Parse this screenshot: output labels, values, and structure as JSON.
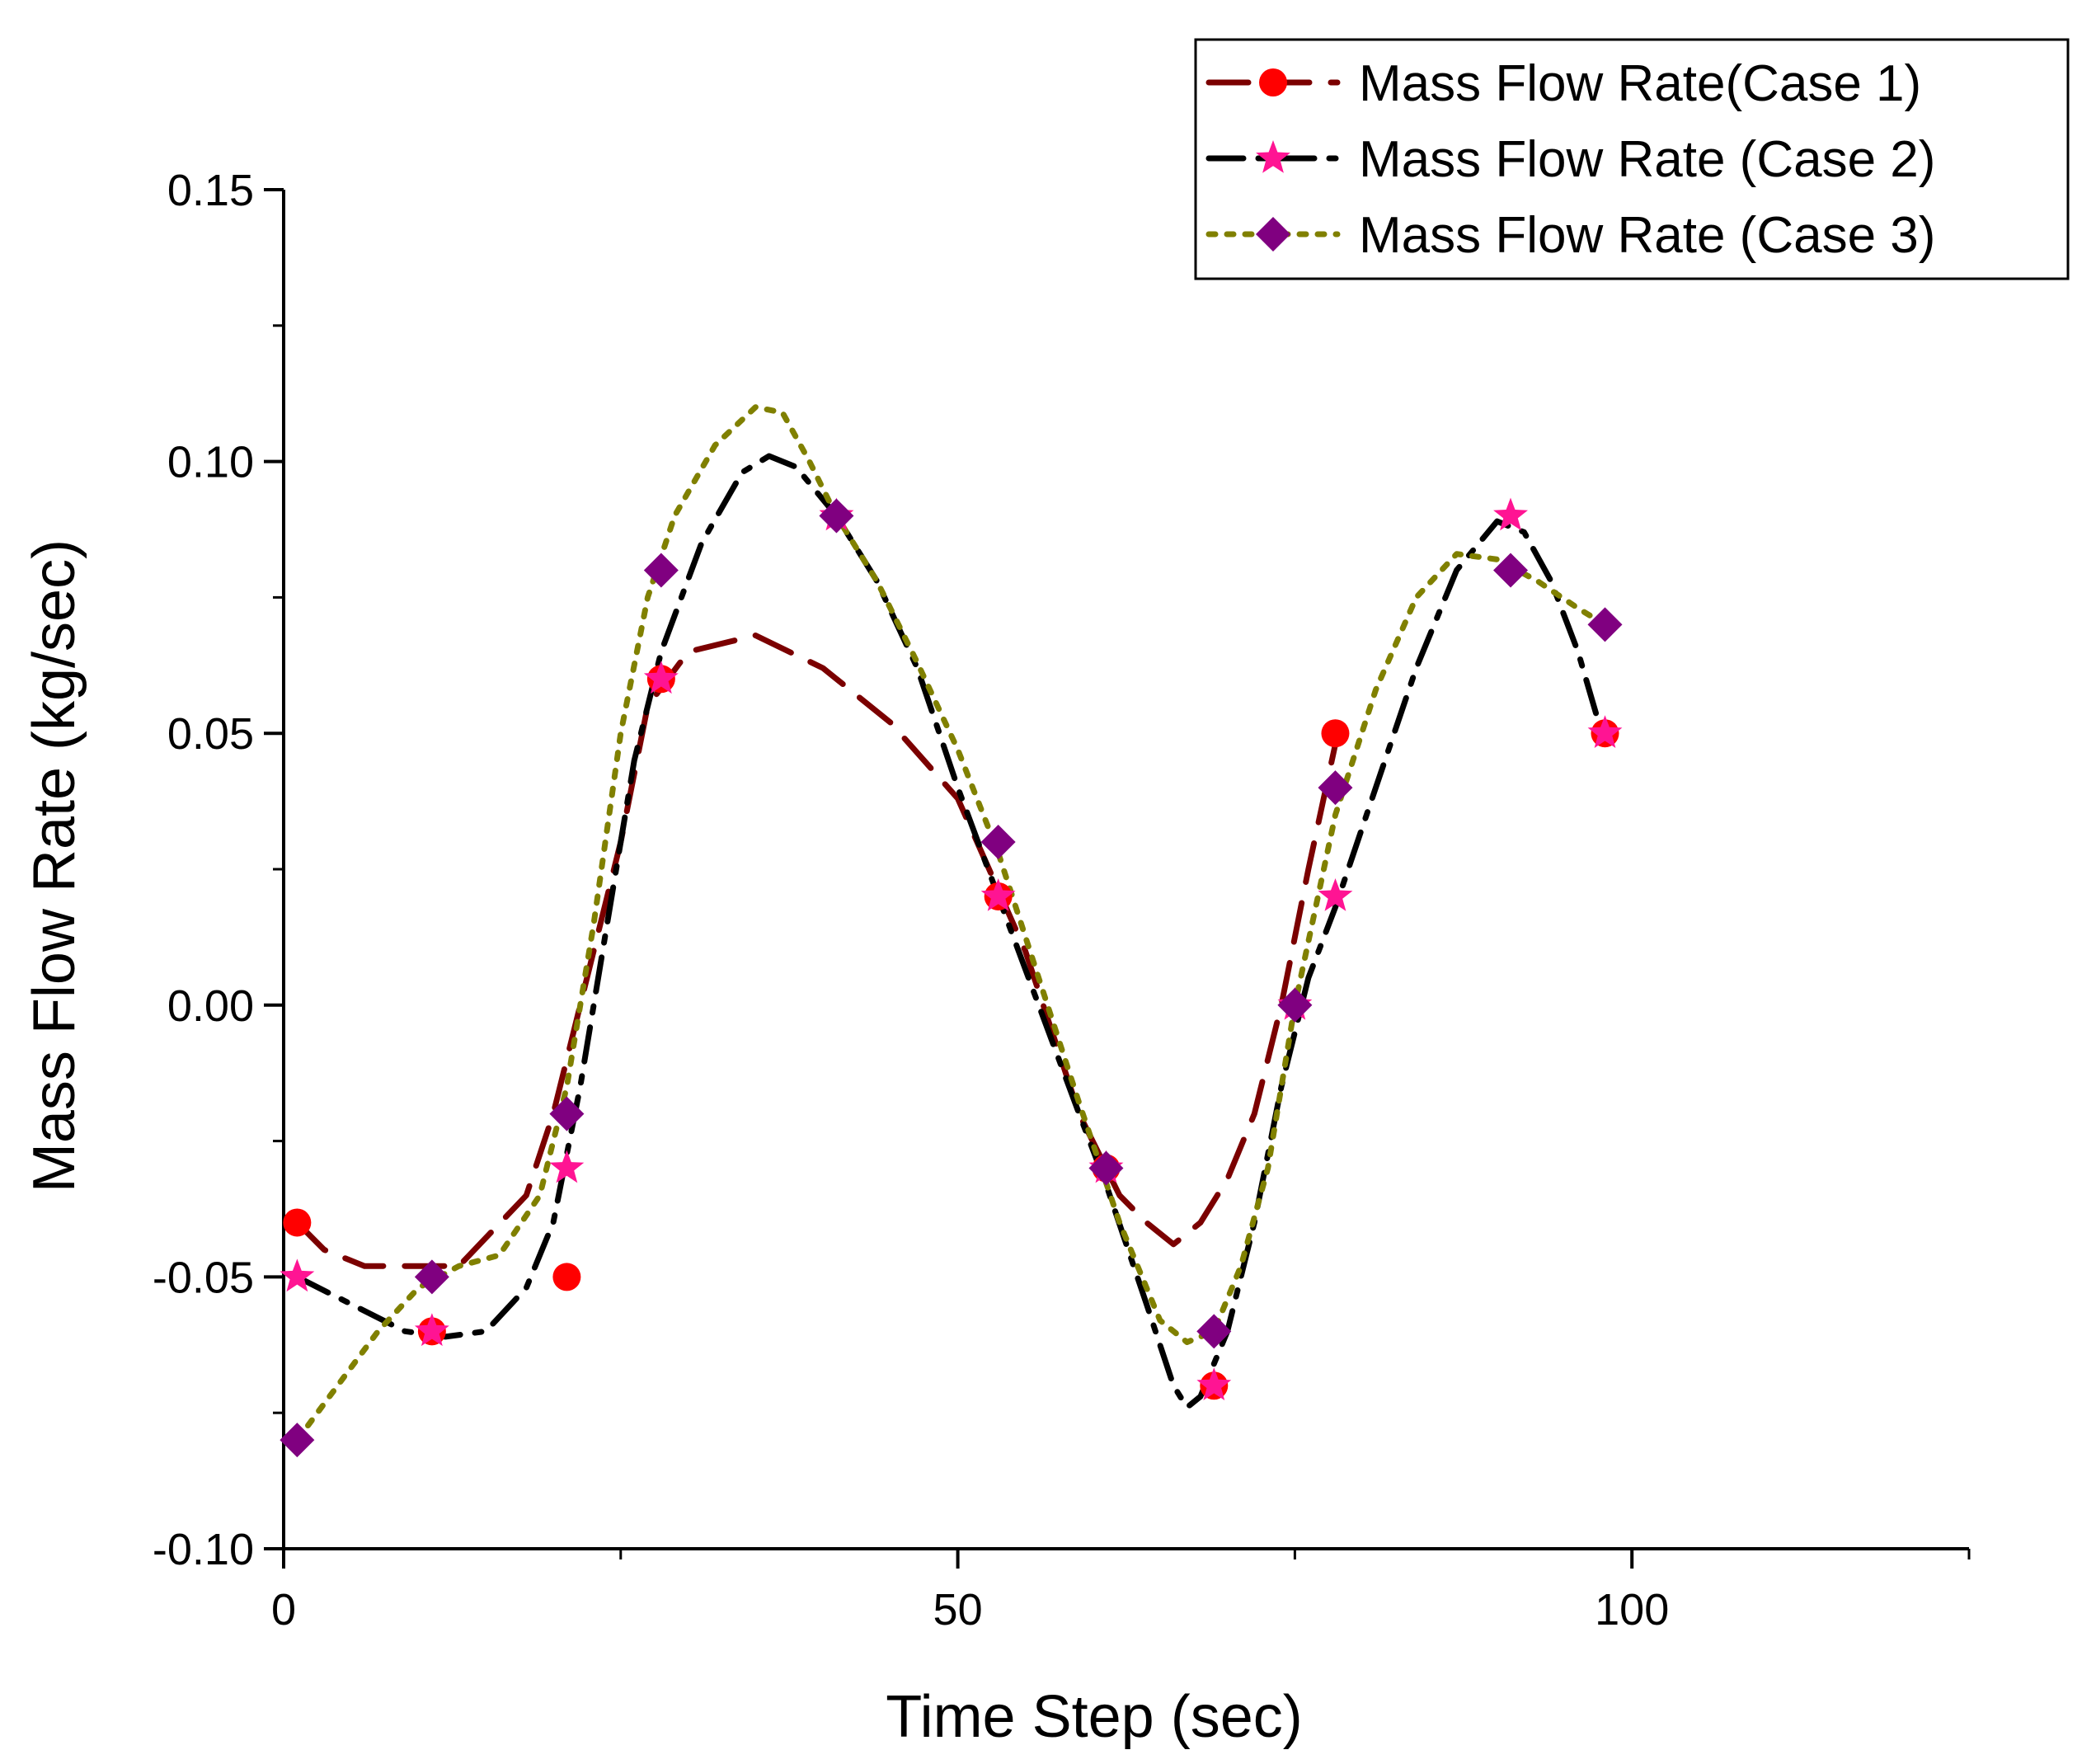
{
  "chart_data": {
    "type": "line",
    "title": "",
    "xlabel": "Time Step (sec)",
    "ylabel": "Mass Flow Rate (kg/sec)",
    "xlim": [
      0,
      125
    ],
    "ylim": [
      -0.1,
      0.15
    ],
    "grid": false,
    "legend_position": "top-right",
    "x_ticks": [
      0,
      50,
      100
    ],
    "x_tick_labels": [
      "0",
      "50",
      "100"
    ],
    "x_minor_ticks": [
      25,
      75,
      125
    ],
    "y_ticks": [
      -0.1,
      -0.05,
      0.0,
      0.05,
      0.1,
      0.15
    ],
    "y_tick_labels": [
      "-0.10",
      "-0.05",
      "0.00",
      "0.05",
      "0.10",
      "0.15"
    ],
    "y_minor_ticks": [
      -0.075,
      -0.025,
      0.025,
      0.075,
      0.125
    ],
    "series": [
      {
        "name": "Mass Flow Rate(Case 1)",
        "marker": "circle",
        "line_style": "dash",
        "line_color": "#7b0000",
        "marker_color": "#ff0000",
        "points": [
          [
            1,
            -0.04
          ],
          [
            11,
            -0.06
          ],
          [
            21,
            -0.05
          ],
          [
            28,
            0.06
          ],
          [
            53,
            0.02
          ],
          [
            61,
            -0.03
          ],
          [
            69,
            -0.07
          ],
          [
            78,
            0.05
          ],
          [
            98,
            0.05
          ]
        ],
        "curve": [
          [
            1,
            -0.04
          ],
          [
            3,
            -0.045
          ],
          [
            6,
            -0.048
          ],
          [
            10,
            -0.048
          ],
          [
            13,
            -0.048
          ],
          [
            18,
            -0.035
          ],
          [
            20,
            -0.02
          ],
          [
            22,
            0.0
          ],
          [
            25,
            0.03
          ],
          [
            27,
            0.055
          ],
          [
            30,
            0.065
          ],
          [
            35,
            0.068
          ],
          [
            40,
            0.062
          ],
          [
            45,
            0.052
          ],
          [
            50,
            0.038
          ],
          [
            55,
            0.01
          ],
          [
            59,
            -0.02
          ],
          [
            62,
            -0.035
          ],
          [
            64,
            -0.04
          ],
          [
            66,
            -0.044
          ],
          [
            68,
            -0.04
          ],
          [
            70,
            -0.032
          ],
          [
            72,
            -0.02
          ],
          [
            74,
            0.0
          ],
          [
            76,
            0.025
          ],
          [
            78,
            0.048
          ]
        ]
      },
      {
        "name": "Mass Flow Rate (Case 2)",
        "marker": "star",
        "line_style": "dashdot",
        "line_color": "#000000",
        "marker_color": "#ff1493",
        "points": [
          [
            1,
            -0.05
          ],
          [
            11,
            -0.06
          ],
          [
            21,
            -0.03
          ],
          [
            28,
            0.06
          ],
          [
            41,
            0.09
          ],
          [
            53,
            0.02
          ],
          [
            61,
            -0.03
          ],
          [
            69,
            -0.07
          ],
          [
            75,
            0.0
          ],
          [
            78,
            0.02
          ],
          [
            91,
            0.09
          ],
          [
            98,
            0.05
          ]
        ],
        "curve": [
          [
            1,
            -0.05
          ],
          [
            5,
            -0.055
          ],
          [
            9,
            -0.06
          ],
          [
            12,
            -0.061
          ],
          [
            15,
            -0.06
          ],
          [
            18,
            -0.052
          ],
          [
            20,
            -0.04
          ],
          [
            22,
            -0.015
          ],
          [
            24,
            0.015
          ],
          [
            26,
            0.045
          ],
          [
            28,
            0.065
          ],
          [
            31,
            0.085
          ],
          [
            34,
            0.098
          ],
          [
            36,
            0.101
          ],
          [
            38,
            0.099
          ],
          [
            41,
            0.09
          ],
          [
            44,
            0.078
          ],
          [
            47,
            0.062
          ],
          [
            50,
            0.04
          ],
          [
            53,
            0.02
          ],
          [
            56,
            0.0
          ],
          [
            59,
            -0.02
          ],
          [
            61,
            -0.033
          ],
          [
            64,
            -0.055
          ],
          [
            66,
            -0.07
          ],
          [
            67,
            -0.074
          ],
          [
            68,
            -0.072
          ],
          [
            70,
            -0.06
          ],
          [
            72,
            -0.04
          ],
          [
            74,
            -0.015
          ],
          [
            76,
            0.005
          ],
          [
            78,
            0.018
          ],
          [
            81,
            0.04
          ],
          [
            84,
            0.062
          ],
          [
            87,
            0.08
          ],
          [
            90,
            0.089
          ],
          [
            92,
            0.087
          ],
          [
            94,
            0.078
          ],
          [
            96,
            0.065
          ],
          [
            98,
            0.048
          ]
        ]
      },
      {
        "name": "Mass Flow Rate (Case 3)",
        "marker": "diamond",
        "line_style": "dot",
        "line_color": "#808000",
        "marker_color": "#800080",
        "points": [
          [
            1,
            -0.08
          ],
          [
            11,
            -0.05
          ],
          [
            21,
            -0.02
          ],
          [
            28,
            0.08
          ],
          [
            41,
            0.09
          ],
          [
            53,
            0.03
          ],
          [
            61,
            -0.03
          ],
          [
            69,
            -0.06
          ],
          [
            75,
            0.0
          ],
          [
            78,
            0.04
          ],
          [
            91,
            0.08
          ],
          [
            98,
            0.07
          ]
        ],
        "curve": [
          [
            1,
            -0.08
          ],
          [
            4,
            -0.07
          ],
          [
            7,
            -0.06
          ],
          [
            10,
            -0.052
          ],
          [
            13,
            -0.048
          ],
          [
            16,
            -0.046
          ],
          [
            19,
            -0.035
          ],
          [
            21,
            -0.015
          ],
          [
            23,
            0.015
          ],
          [
            25,
            0.05
          ],
          [
            27,
            0.075
          ],
          [
            29,
            0.09
          ],
          [
            32,
            0.103
          ],
          [
            35,
            0.11
          ],
          [
            37,
            0.109
          ],
          [
            39,
            0.1
          ],
          [
            41,
            0.09
          ],
          [
            44,
            0.078
          ],
          [
            47,
            0.063
          ],
          [
            50,
            0.047
          ],
          [
            53,
            0.028
          ],
          [
            56,
            0.005
          ],
          [
            59,
            -0.018
          ],
          [
            62,
            -0.04
          ],
          [
            65,
            -0.058
          ],
          [
            67,
            -0.062
          ],
          [
            69,
            -0.06
          ],
          [
            71,
            -0.048
          ],
          [
            73,
            -0.03
          ],
          [
            75,
            0.0
          ],
          [
            78,
            0.035
          ],
          [
            81,
            0.058
          ],
          [
            84,
            0.075
          ],
          [
            87,
            0.083
          ],
          [
            90,
            0.082
          ],
          [
            93,
            0.078
          ],
          [
            96,
            0.073
          ],
          [
            98,
            0.07
          ]
        ]
      }
    ]
  }
}
